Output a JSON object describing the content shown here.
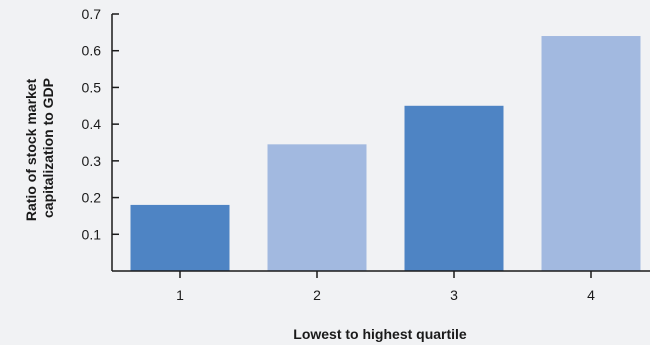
{
  "chart_data": {
    "type": "bar",
    "categories": [
      "1",
      "2",
      "3",
      "4"
    ],
    "values": [
      0.18,
      0.345,
      0.45,
      0.64
    ],
    "colors": [
      "#4e84c4",
      "#a2b9e0",
      "#4e84c4",
      "#a2b9e0"
    ],
    "xlabel": "Lowest to highest quartile",
    "ylabel_lines": [
      "Ratio of stock market",
      "capitalization to GDP"
    ],
    "ylim": [
      0,
      0.7
    ],
    "yticks": [
      0.1,
      0.2,
      0.3,
      0.4,
      0.5,
      0.6,
      0.7
    ],
    "ytick_labels": [
      "0.1",
      "0.2",
      "0.3",
      "0.4",
      "0.5",
      "0.6",
      "0.7"
    ],
    "grid": false,
    "legend": "none",
    "background": "#f1f2f4",
    "axis_color": "#1a1a1a"
  }
}
